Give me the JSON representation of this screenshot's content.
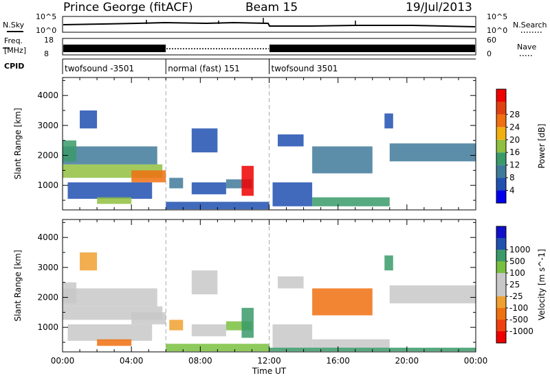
{
  "header": {
    "station": "Prince George (fitACF)",
    "beam": "Beam 15",
    "date": "19/Jul/2013"
  },
  "noise_panel": {
    "left_label": "N.Sky",
    "left_ticks": [
      "10^5",
      "10^0"
    ],
    "right_label": "N.Search",
    "right_ticks": [
      "10^5",
      "10^0"
    ]
  },
  "freq_panel": {
    "left_label_1": "Freq.",
    "left_label_2": "[MHz]",
    "left_ticks": [
      "18",
      "8"
    ],
    "right_label": "Nave",
    "right_ticks": [
      "60",
      "0"
    ]
  },
  "cpid": {
    "label": "CPID",
    "segments": [
      {
        "start": 0,
        "end": 6,
        "text": "twofsound -3501"
      },
      {
        "start": 6,
        "end": 12,
        "text": "normal (fast) 151"
      },
      {
        "start": 12,
        "end": 24,
        "text": "twofsound 3501"
      }
    ]
  },
  "colors": {
    "power_scale": [
      "#0000ee",
      "#2050b0",
      "#3f7a9a",
      "#3a9a6a",
      "#90c040",
      "#f0b010",
      "#f07010",
      "#e04010",
      "#ee0000"
    ],
    "velocity_scale": [
      "#ee0000",
      "#f04010",
      "#f07010",
      "#f0a030",
      "#c8c8c8",
      "#c8c8c8",
      "#7ac040",
      "#3a9a6a",
      "#2050b0",
      "#1010cc"
    ]
  },
  "chart_data": [
    {
      "type": "heatmap",
      "name": "Power",
      "xlabel": "",
      "ylabel": "Slant Range [km]",
      "xlim": [
        0,
        24
      ],
      "ylim": [
        180,
        4600
      ],
      "x_ticks": [
        0,
        4,
        8,
        12,
        16,
        20,
        24
      ],
      "x_tick_labels": [
        "",
        "",
        "",
        "",
        "",
        "",
        ""
      ],
      "y_ticks": [
        1000,
        2000,
        3000,
        4000
      ],
      "y_tick_labels": [
        "1000",
        "2000",
        "3000",
        "4000"
      ],
      "colorbar": {
        "label": "Power [dB]",
        "ticks": [
          "4",
          "8",
          "12",
          "16",
          "20",
          "24",
          "28"
        ],
        "range": [
          0,
          30
        ]
      },
      "regions": [
        {
          "t0": 0.0,
          "t1": 5.8,
          "r0": 1250,
          "r1": 1700,
          "v": 15
        },
        {
          "t0": 0.0,
          "t1": 5.5,
          "r0": 1700,
          "r1": 2300,
          "v": 7
        },
        {
          "t0": 0.0,
          "t1": 0.8,
          "r0": 1800,
          "r1": 2500,
          "v": 11
        },
        {
          "t0": 1.0,
          "t1": 2.0,
          "r0": 2900,
          "r1": 3500,
          "v": 6
        },
        {
          "t0": 0.3,
          "t1": 5.2,
          "r0": 550,
          "r1": 1100,
          "v": 5
        },
        {
          "t0": 2.0,
          "t1": 4.0,
          "r0": 380,
          "r1": 600,
          "v": 14
        },
        {
          "t0": 4.0,
          "t1": 6.0,
          "r0": 1100,
          "r1": 1500,
          "v": 20
        },
        {
          "t0": 6.2,
          "t1": 7.0,
          "r0": 900,
          "r1": 1250,
          "v": 8
        },
        {
          "t0": 7.5,
          "t1": 9.5,
          "r0": 700,
          "r1": 1100,
          "v": 6
        },
        {
          "t0": 9.5,
          "t1": 11.0,
          "r0": 900,
          "r1": 1200,
          "v": 8
        },
        {
          "t0": 10.4,
          "t1": 11.1,
          "r0": 650,
          "r1": 1650,
          "v": 28
        },
        {
          "t0": 6.0,
          "t1": 12.0,
          "r0": 200,
          "r1": 450,
          "v": 6
        },
        {
          "t0": 7.5,
          "t1": 9.0,
          "r0": 2100,
          "r1": 2900,
          "v": 5
        },
        {
          "t0": 12.2,
          "t1": 14.5,
          "r0": 300,
          "r1": 1100,
          "v": 5
        },
        {
          "t0": 14.5,
          "t1": 19.0,
          "r0": 300,
          "r1": 600,
          "v": 10
        },
        {
          "t0": 14.5,
          "t1": 18.0,
          "r0": 1400,
          "r1": 2300,
          "v": 8
        },
        {
          "t0": 19.0,
          "t1": 24.0,
          "r0": 1800,
          "r1": 2400,
          "v": 7
        },
        {
          "t0": 12.5,
          "t1": 14.0,
          "r0": 2300,
          "r1": 2700,
          "v": 4
        },
        {
          "t0": 18.7,
          "t1": 19.2,
          "r0": 2900,
          "r1": 3400,
          "v": 6
        }
      ]
    },
    {
      "type": "heatmap",
      "name": "Velocity",
      "xlabel": "Time UT",
      "ylabel": "Slant Range [km]",
      "xlim": [
        0,
        24
      ],
      "ylim": [
        180,
        4600
      ],
      "x_ticks": [
        0,
        4,
        8,
        12,
        16,
        20,
        24
      ],
      "x_tick_labels": [
        "00:00",
        "04:00",
        "08:00",
        "12:00",
        "16:00",
        "20:00",
        "00:00"
      ],
      "y_ticks": [
        1000,
        2000,
        3000,
        4000
      ],
      "y_tick_labels": [
        "1000",
        "2000",
        "3000",
        "4000"
      ],
      "colorbar": {
        "label": "Velocity [m s^-1]",
        "ticks": [
          "-1000",
          "-500",
          "-100",
          "-25",
          "25",
          "100",
          "500",
          "1000"
        ],
        "range": [
          -1200,
          1200
        ]
      },
      "regions": [
        {
          "t0": 0.0,
          "t1": 5.8,
          "r0": 1250,
          "r1": 1700,
          "v": 0
        },
        {
          "t0": 0.0,
          "t1": 5.5,
          "r0": 1700,
          "r1": 2300,
          "v": 0
        },
        {
          "t0": 0.0,
          "t1": 0.8,
          "r0": 1800,
          "r1": 2500,
          "v": 10
        },
        {
          "t0": 1.0,
          "t1": 2.0,
          "r0": 2900,
          "r1": 3500,
          "v": -30
        },
        {
          "t0": 0.3,
          "t1": 5.2,
          "r0": 550,
          "r1": 1100,
          "v": 0
        },
        {
          "t0": 2.0,
          "t1": 4.0,
          "r0": 380,
          "r1": 600,
          "v": -300
        },
        {
          "t0": 4.0,
          "t1": 6.0,
          "r0": 1100,
          "r1": 1500,
          "v": 0
        },
        {
          "t0": 6.2,
          "t1": 7.0,
          "r0": 900,
          "r1": 1250,
          "v": -80
        },
        {
          "t0": 7.5,
          "t1": 9.5,
          "r0": 700,
          "r1": 1100,
          "v": 0
        },
        {
          "t0": 9.5,
          "t1": 11.0,
          "r0": 900,
          "r1": 1200,
          "v": 50
        },
        {
          "t0": 10.4,
          "t1": 11.1,
          "r0": 650,
          "r1": 1650,
          "v": 200
        },
        {
          "t0": 6.0,
          "t1": 12.0,
          "r0": 200,
          "r1": 450,
          "v": 60
        },
        {
          "t0": 7.5,
          "t1": 9.0,
          "r0": 2100,
          "r1": 2900,
          "v": 0
        },
        {
          "t0": 12.2,
          "t1": 14.5,
          "r0": 300,
          "r1": 1100,
          "v": 0
        },
        {
          "t0": 14.5,
          "t1": 19.0,
          "r0": 300,
          "r1": 600,
          "v": 0
        },
        {
          "t0": 14.5,
          "t1": 18.0,
          "r0": 1400,
          "r1": 2300,
          "v": -300
        },
        {
          "t0": 19.0,
          "t1": 24.0,
          "r0": 1800,
          "r1": 2400,
          "v": 0
        },
        {
          "t0": 12.5,
          "t1": 14.0,
          "r0": 2300,
          "r1": 2700,
          "v": 0
        },
        {
          "t0": 18.7,
          "t1": 19.2,
          "r0": 2900,
          "r1": 3400,
          "v": 300
        },
        {
          "t0": 12.0,
          "t1": 24.0,
          "r0": 200,
          "r1": 320,
          "v": 150
        }
      ]
    }
  ]
}
